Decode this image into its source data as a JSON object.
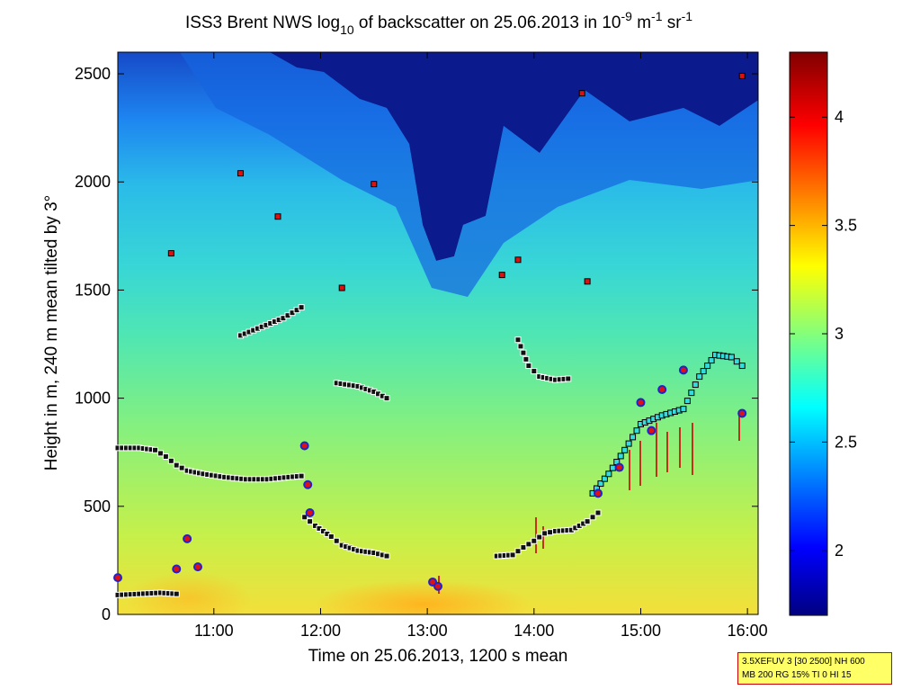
{
  "chart_data": {
    "type": "heatmap",
    "title": {
      "prefix": "ISS3 Brent NWS log",
      "sub": "10",
      "mid": " of backscatter on 25.06.2013 in 10",
      "exp1": "-9",
      "unit1": " m",
      "exp2": "-1",
      "unit2": " sr",
      "exp3": "-1"
    },
    "xlabel": "Time on 25.06.2013, 1200 s mean",
    "ylabel": "Height in m, 240 m mean tilted by 3°",
    "x_range_hours": [
      10.1,
      16.1
    ],
    "y_range_m": [
      0,
      2600
    ],
    "x_ticks": [
      {
        "value": 11,
        "label": "11:00"
      },
      {
        "value": 12,
        "label": "12:00"
      },
      {
        "value": 13,
        "label": "13:00"
      },
      {
        "value": 14,
        "label": "14:00"
      },
      {
        "value": 15,
        "label": "15:00"
      },
      {
        "value": 16,
        "label": "16:00"
      }
    ],
    "y_ticks": [
      {
        "value": 0,
        "label": "0"
      },
      {
        "value": 500,
        "label": "500"
      },
      {
        "value": 1000,
        "label": "1000"
      },
      {
        "value": 1500,
        "label": "1500"
      },
      {
        "value": 2000,
        "label": "2000"
      },
      {
        "value": 2500,
        "label": "2500"
      }
    ],
    "colorbar": {
      "range": [
        1.7,
        4.3
      ],
      "ticks": [
        {
          "value": 2,
          "label": "2"
        },
        {
          "value": 2.5,
          "label": "2.5"
        },
        {
          "value": 3,
          "label": "3"
        },
        {
          "value": 3.5,
          "label": "3.5"
        },
        {
          "value": 4,
          "label": "4"
        }
      ]
    },
    "series": [
      {
        "name": "layer-lower",
        "marker": "black-square",
        "points": [
          [
            10.1,
            90
          ],
          [
            10.3,
            95
          ],
          [
            10.5,
            100
          ],
          [
            10.65,
            95
          ]
        ]
      },
      {
        "name": "boundary-layer",
        "marker": "black-square",
        "points": [
          [
            10.1,
            770
          ],
          [
            10.3,
            770
          ],
          [
            10.45,
            760
          ],
          [
            10.55,
            730
          ],
          [
            10.65,
            690
          ],
          [
            10.75,
            665
          ],
          [
            10.9,
            650
          ],
          [
            11.1,
            635
          ],
          [
            11.3,
            625
          ],
          [
            11.5,
            625
          ],
          [
            11.7,
            635
          ],
          [
            11.82,
            640
          ]
        ]
      },
      {
        "name": "descending-layer",
        "marker": "black-square",
        "points": [
          [
            11.85,
            450
          ],
          [
            11.95,
            410
          ],
          [
            12.1,
            360
          ],
          [
            12.2,
            320
          ],
          [
            12.35,
            295
          ],
          [
            12.5,
            285
          ],
          [
            12.62,
            270
          ]
        ]
      },
      {
        "name": "rising-layer",
        "marker": "black-square",
        "points": [
          [
            13.65,
            270
          ],
          [
            13.8,
            275
          ],
          [
            13.9,
            310
          ],
          [
            14.0,
            340
          ],
          [
            14.1,
            375
          ],
          [
            14.2,
            385
          ],
          [
            14.35,
            390
          ],
          [
            14.5,
            430
          ],
          [
            14.6,
            470
          ]
        ]
      },
      {
        "name": "upper-layer-1",
        "marker": "black-square",
        "points": [
          [
            11.25,
            1290
          ],
          [
            11.45,
            1330
          ],
          [
            11.65,
            1370
          ],
          [
            11.82,
            1420
          ]
        ]
      },
      {
        "name": "upper-layer-2",
        "marker": "black-square",
        "points": [
          [
            12.15,
            1070
          ],
          [
            12.35,
            1055
          ],
          [
            12.5,
            1030
          ],
          [
            12.62,
            1000
          ]
        ]
      },
      {
        "name": "upper-layer-3",
        "marker": "black-square",
        "points": [
          [
            13.85,
            1270
          ],
          [
            13.9,
            1210
          ],
          [
            13.95,
            1150
          ],
          [
            14.05,
            1100
          ],
          [
            14.2,
            1085
          ],
          [
            14.32,
            1090
          ]
        ]
      },
      {
        "name": "convective-layer",
        "marker": "cyan-square",
        "points": [
          [
            14.55,
            560
          ],
          [
            14.7,
            650
          ],
          [
            14.85,
            760
          ],
          [
            15.0,
            880
          ],
          [
            15.2,
            920
          ],
          [
            15.4,
            950
          ],
          [
            15.55,
            1100
          ],
          [
            15.7,
            1200
          ],
          [
            15.85,
            1190
          ],
          [
            15.95,
            1150
          ]
        ]
      },
      {
        "name": "high-clouds",
        "marker": "red-square",
        "points": [
          [
            10.6,
            1670
          ],
          [
            11.25,
            2040
          ],
          [
            11.6,
            1840
          ],
          [
            12.2,
            1510
          ],
          [
            12.5,
            1990
          ],
          [
            13.7,
            1570
          ],
          [
            13.85,
            1640
          ],
          [
            14.45,
            2410
          ],
          [
            14.5,
            1540
          ],
          [
            15.95,
            2490
          ]
        ]
      },
      {
        "name": "cloud-base",
        "marker": "red-circle",
        "points": [
          [
            10.1,
            170
          ],
          [
            10.65,
            210
          ],
          [
            10.75,
            350
          ],
          [
            10.85,
            220
          ],
          [
            11.85,
            780
          ],
          [
            11.88,
            600
          ],
          [
            11.9,
            470
          ],
          [
            13.05,
            150
          ],
          [
            13.1,
            130
          ],
          [
            14.6,
            560
          ],
          [
            14.8,
            680
          ],
          [
            15.0,
            980
          ],
          [
            15.1,
            850
          ],
          [
            15.2,
            1040
          ],
          [
            15.4,
            1130
          ],
          [
            15.95,
            930
          ]
        ]
      }
    ]
  },
  "info_box": {
    "line1": "3.5XEFUV 3 [30 2500] NH 600",
    "line2": "MB 200 RG 15% TI 0 HI 15"
  }
}
